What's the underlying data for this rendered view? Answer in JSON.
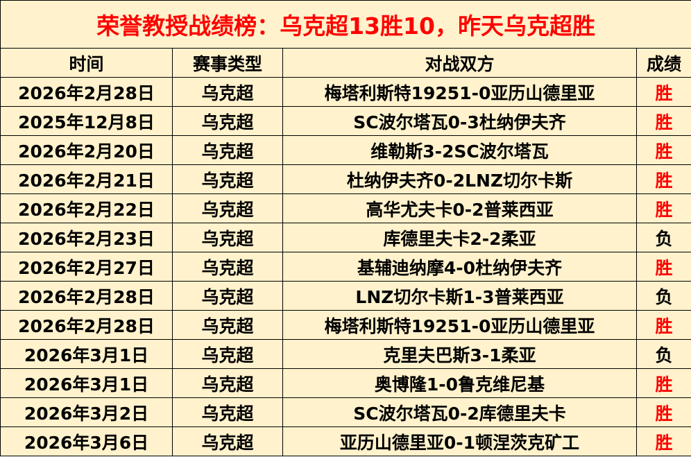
{
  "title": "荣誉教授战绩榜：乌克超13胜10，昨天乌克超胜",
  "headers": [
    "时间",
    "赛事类型",
    "对战双方",
    "成绩"
  ],
  "colors": {
    "background": "#FFF2CC",
    "accent_red": "#FF0000",
    "text": "#000000"
  },
  "rows": [
    {
      "date": "2026年2月28日",
      "type": "乌克超",
      "match": "梅塔利斯特19251-0亚历山德里亚",
      "result": "胜"
    },
    {
      "date": "2025年12月8日",
      "type": "乌克超",
      "match": "SC波尔塔瓦0-3杜纳伊夫齐",
      "result": "胜"
    },
    {
      "date": "2026年2月20日",
      "type": "乌克超",
      "match": "维勒斯3-2SC波尔塔瓦",
      "result": "胜"
    },
    {
      "date": "2026年2月21日",
      "type": "乌克超",
      "match": "杜纳伊夫齐0-2LNZ切尔卡斯",
      "result": "胜"
    },
    {
      "date": "2026年2月22日",
      "type": "乌克超",
      "match": "高华尤夫卡0-2普莱西亚",
      "result": "胜"
    },
    {
      "date": "2026年2月23日",
      "type": "乌克超",
      "match": "库德里夫卡2-2柔亚",
      "result": "负"
    },
    {
      "date": "2026年2月27日",
      "type": "乌克超",
      "match": "基辅迪纳摩4-0杜纳伊夫齐",
      "result": "胜"
    },
    {
      "date": "2026年2月28日",
      "type": "乌克超",
      "match": "LNZ切尔卡斯1-3普莱西亚",
      "result": "负"
    },
    {
      "date": "2026年2月28日",
      "type": "乌克超",
      "match": "梅塔利斯特19251-0亚历山德里亚",
      "result": "胜"
    },
    {
      "date": "2026年3月1日",
      "type": "乌克超",
      "match": "克里夫巴斯3-1柔亚",
      "result": "负"
    },
    {
      "date": "2026年3月1日",
      "type": "乌克超",
      "match": "奥博隆1-0鲁克维尼基",
      "result": "胜"
    },
    {
      "date": "2026年3月2日",
      "type": "乌克超",
      "match": "SC波尔塔瓦0-2库德里夫卡",
      "result": "胜"
    },
    {
      "date": "2026年3月6日",
      "type": "乌克超",
      "match": "亚历山德里亚0-1顿涅茨克矿工",
      "result": "胜"
    }
  ]
}
